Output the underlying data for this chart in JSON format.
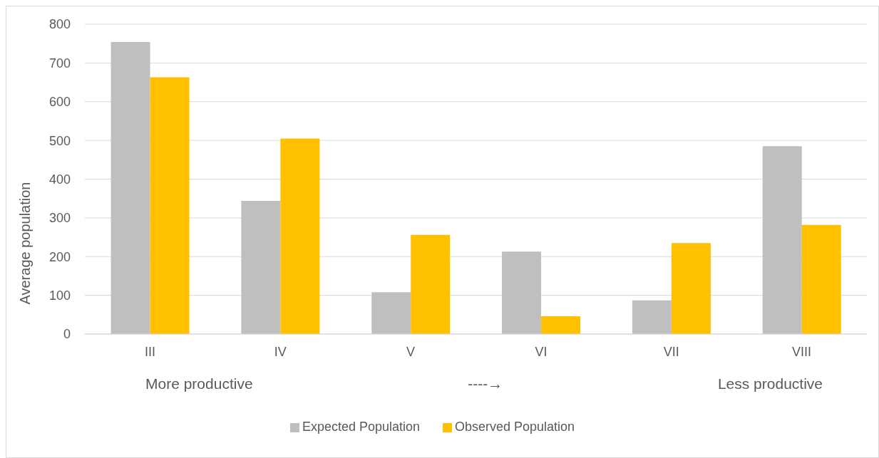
{
  "chart_data": {
    "type": "bar",
    "ylabel": "Average population",
    "categories": [
      "III",
      "IV",
      "V",
      "VI",
      "VII",
      "VIII"
    ],
    "series": [
      {
        "name": "Expected Population",
        "color": "#bfbfbf",
        "values": [
          754,
          344,
          108,
          213,
          87,
          485
        ]
      },
      {
        "name": "Observed Population",
        "color": "#ffc000",
        "values": [
          663,
          505,
          256,
          46,
          235,
          282
        ]
      }
    ],
    "ylim": [
      0,
      800
    ],
    "yticks": [
      0,
      100,
      200,
      300,
      400,
      500,
      600,
      700,
      800
    ],
    "grid": "y",
    "legend": "bottom",
    "annotations": [
      "More productive",
      "----→",
      "Less productive"
    ]
  }
}
